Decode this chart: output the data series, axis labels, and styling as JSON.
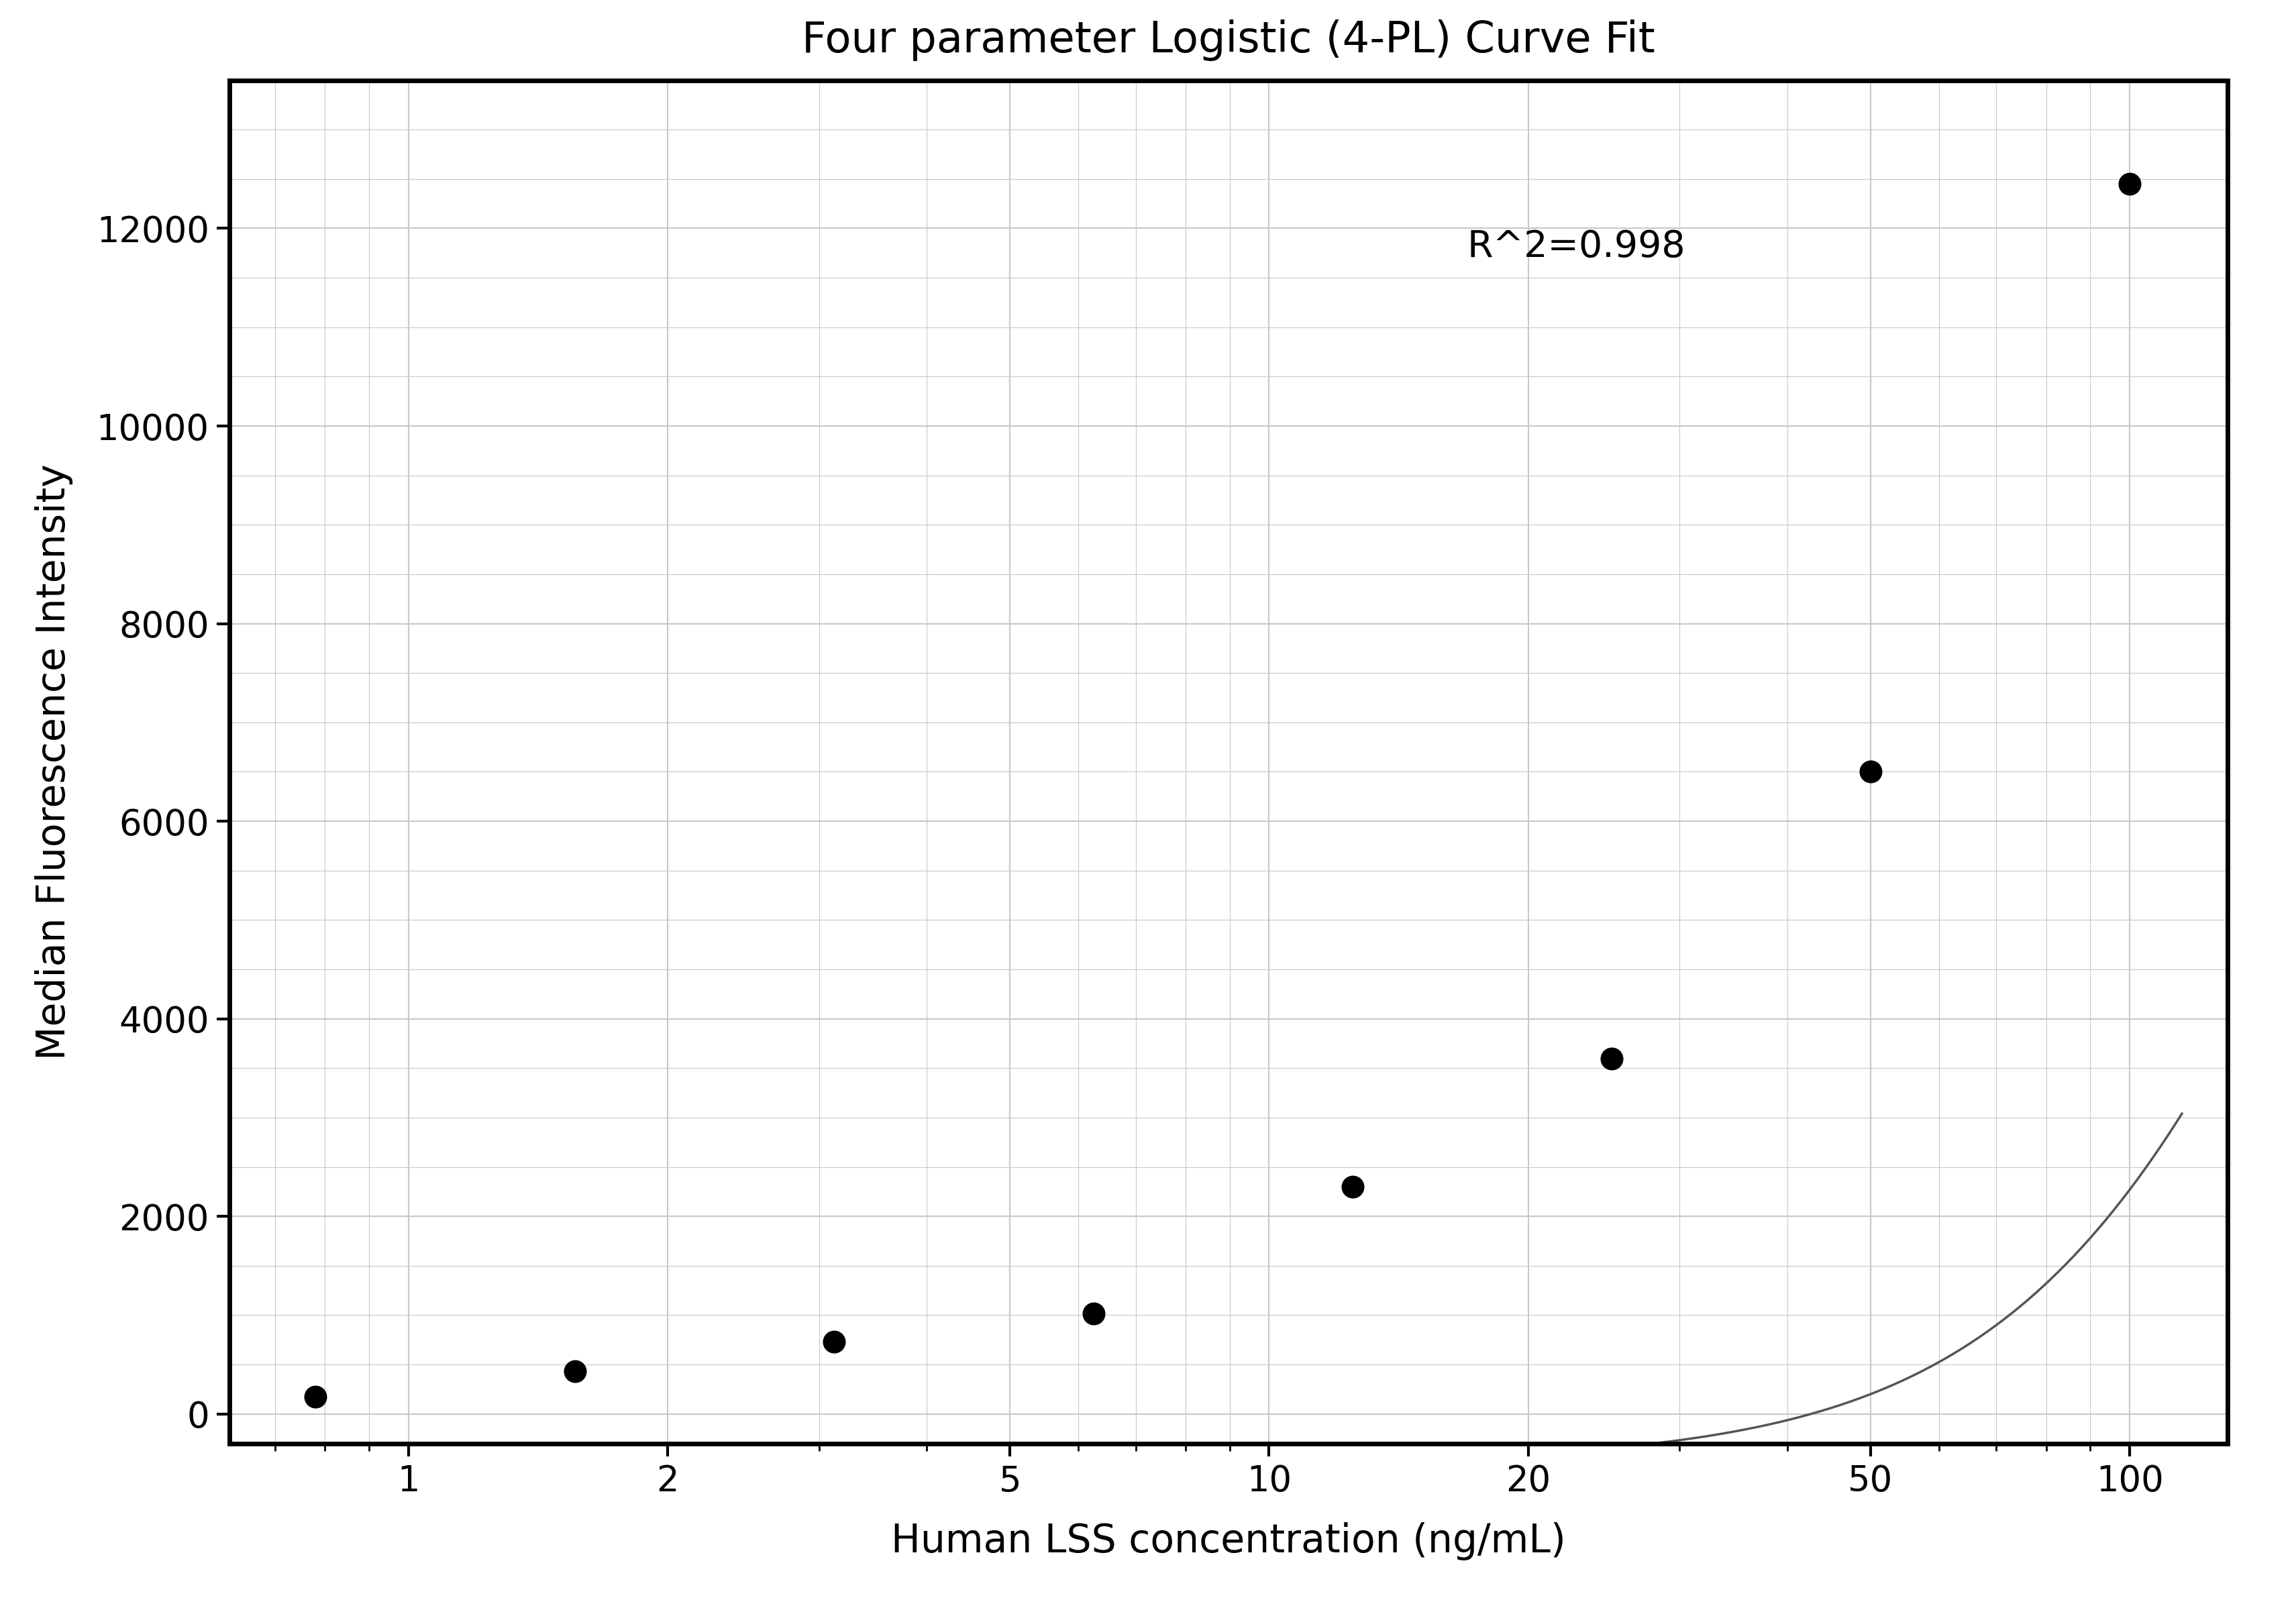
{
  "title": "Four parameter Logistic (4-PL) Curve Fit",
  "xlabel": "Human LSS concentration (ng/mL)",
  "ylabel": "Median Fluorescence Intensity",
  "r_squared_text": "R^2=0.998",
  "data_x": [
    0.78,
    1.5625,
    3.125,
    6.25,
    12.5,
    25.0,
    50.0,
    100.0
  ],
  "data_y": [
    175,
    430,
    730,
    1020,
    2300,
    3600,
    6500,
    12450
  ],
  "xlim_log": [
    0.62,
    130
  ],
  "ylim": [
    -300,
    13500
  ],
  "xticks": [
    1,
    2,
    5,
    10,
    20,
    50,
    100
  ],
  "yticks": [
    0,
    2000,
    4000,
    6000,
    8000,
    10000,
    12000
  ],
  "bg_color": "#ffffff",
  "grid_color": "#c8c8c8",
  "curve_color": "#555555",
  "point_color": "#000000",
  "point_size": 600,
  "title_fontsize": 46,
  "label_fontsize": 42,
  "tick_fontsize": 38,
  "annotation_fontsize": 40,
  "spine_linewidth": 5,
  "curve_linewidth": 2.5,
  "r2_x_data": 17,
  "r2_y_data": 12000
}
